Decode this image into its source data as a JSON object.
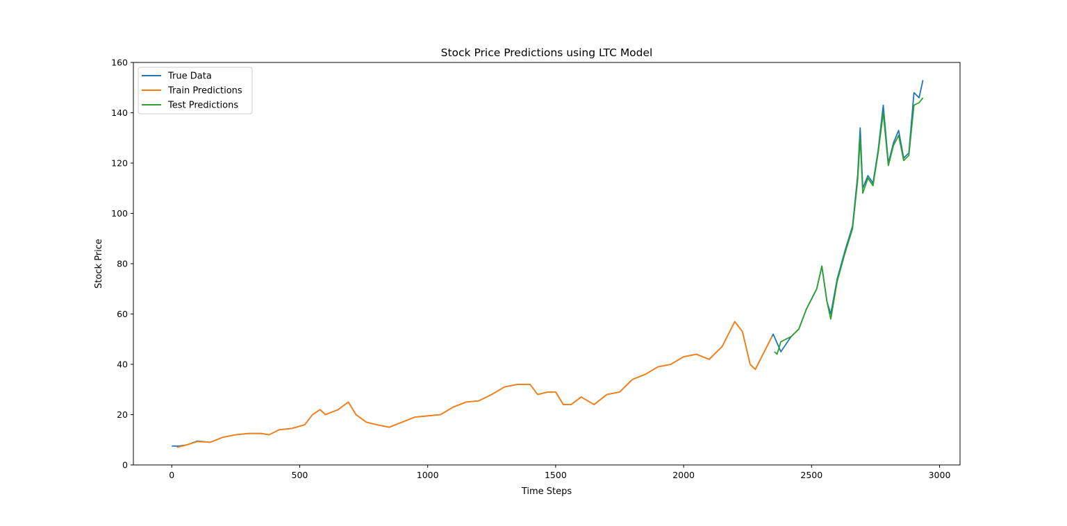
{
  "chart_data": {
    "type": "line",
    "title": "Stock Price Predictions using LTC Model",
    "xlabel": "Time Steps",
    "ylabel": "Stock Price",
    "xlim": [
      -150,
      3080
    ],
    "ylim": [
      0,
      160
    ],
    "xticks": [
      0,
      500,
      1000,
      1500,
      2000,
      2500,
      3000
    ],
    "yticks": [
      0,
      20,
      40,
      60,
      80,
      100,
      120,
      140,
      160
    ],
    "grid": false,
    "legend_position": "top-left",
    "series": [
      {
        "name": "True Data",
        "color": "#1f77b4",
        "x": [
          0,
          30,
          60,
          100,
          150,
          200,
          250,
          300,
          350,
          380,
          420,
          470,
          520,
          550,
          580,
          600,
          650,
          690,
          720,
          760,
          800,
          850,
          900,
          950,
          1000,
          1050,
          1100,
          1150,
          1200,
          1250,
          1300,
          1350,
          1400,
          1430,
          1470,
          1500,
          1530,
          1560,
          1600,
          1650,
          1700,
          1750,
          1800,
          1850,
          1900,
          1950,
          2000,
          2050,
          2100,
          2150,
          2200,
          2230,
          2260,
          2280,
          2320,
          2350,
          2380,
          2420,
          2450,
          2480,
          2500,
          2520,
          2540,
          2560,
          2575,
          2600,
          2630,
          2660,
          2680,
          2690,
          2700,
          2720,
          2740,
          2760,
          2780,
          2800,
          2820,
          2840,
          2860,
          2880,
          2900,
          2920,
          2935
        ],
        "y": [
          7.5,
          7.5,
          8,
          9.5,
          9,
          11,
          12,
          12.5,
          12.5,
          12,
          14,
          14.5,
          16,
          20,
          22,
          20,
          22,
          25,
          20,
          17,
          16,
          15,
          17,
          19,
          19.5,
          20,
          23,
          25,
          25.5,
          28,
          31,
          32,
          32,
          28,
          29,
          29,
          24,
          24,
          27,
          24,
          28,
          29,
          34,
          36,
          39,
          40,
          43,
          44,
          42,
          47,
          57,
          53,
          40,
          38,
          46,
          52,
          45,
          51,
          54,
          62,
          66,
          70,
          79,
          65,
          60,
          74,
          85,
          95,
          115,
          134,
          110,
          115,
          112,
          125,
          143,
          120,
          128,
          133,
          122,
          124,
          148,
          146,
          153
        ]
      },
      {
        "name": "Train Predictions",
        "color": "#ff7f0e",
        "x": [
          20,
          30,
          60,
          100,
          150,
          200,
          250,
          300,
          350,
          380,
          420,
          470,
          520,
          550,
          580,
          600,
          650,
          690,
          720,
          760,
          800,
          850,
          900,
          950,
          1000,
          1050,
          1100,
          1150,
          1200,
          1250,
          1300,
          1350,
          1400,
          1430,
          1470,
          1500,
          1530,
          1560,
          1600,
          1650,
          1700,
          1750,
          1800,
          1850,
          1900,
          1950,
          2000,
          2050,
          2100,
          2150,
          2200,
          2230,
          2260,
          2280,
          2320,
          2345
        ],
        "y": [
          7,
          7.2,
          8,
          9.3,
          9,
          11,
          12,
          12.5,
          12.5,
          12,
          14,
          14.5,
          16,
          20,
          22,
          20,
          22,
          25,
          20,
          17,
          16,
          15,
          17,
          19,
          19.5,
          20,
          23,
          25,
          25.5,
          28,
          31,
          32,
          32,
          28,
          29,
          29,
          24,
          24,
          27,
          24,
          28,
          29,
          34,
          36,
          39,
          40,
          43,
          44,
          42,
          47,
          57,
          53,
          40,
          38,
          46,
          51
        ]
      },
      {
        "name": "Test Predictions",
        "color": "#2ca02c",
        "x": [
          2355,
          2365,
          2380,
          2420,
          2450,
          2480,
          2500,
          2520,
          2540,
          2560,
          2575,
          2600,
          2630,
          2660,
          2680,
          2690,
          2700,
          2720,
          2740,
          2760,
          2780,
          2800,
          2820,
          2840,
          2860,
          2880,
          2900,
          2920,
          2935
        ],
        "y": [
          45,
          44,
          49,
          51,
          54,
          62,
          66,
          70,
          79,
          65,
          58,
          73,
          84,
          94,
          113,
          130,
          108,
          114,
          111,
          124,
          140,
          119,
          127,
          131,
          121,
          123,
          143,
          144,
          146
        ]
      }
    ]
  }
}
